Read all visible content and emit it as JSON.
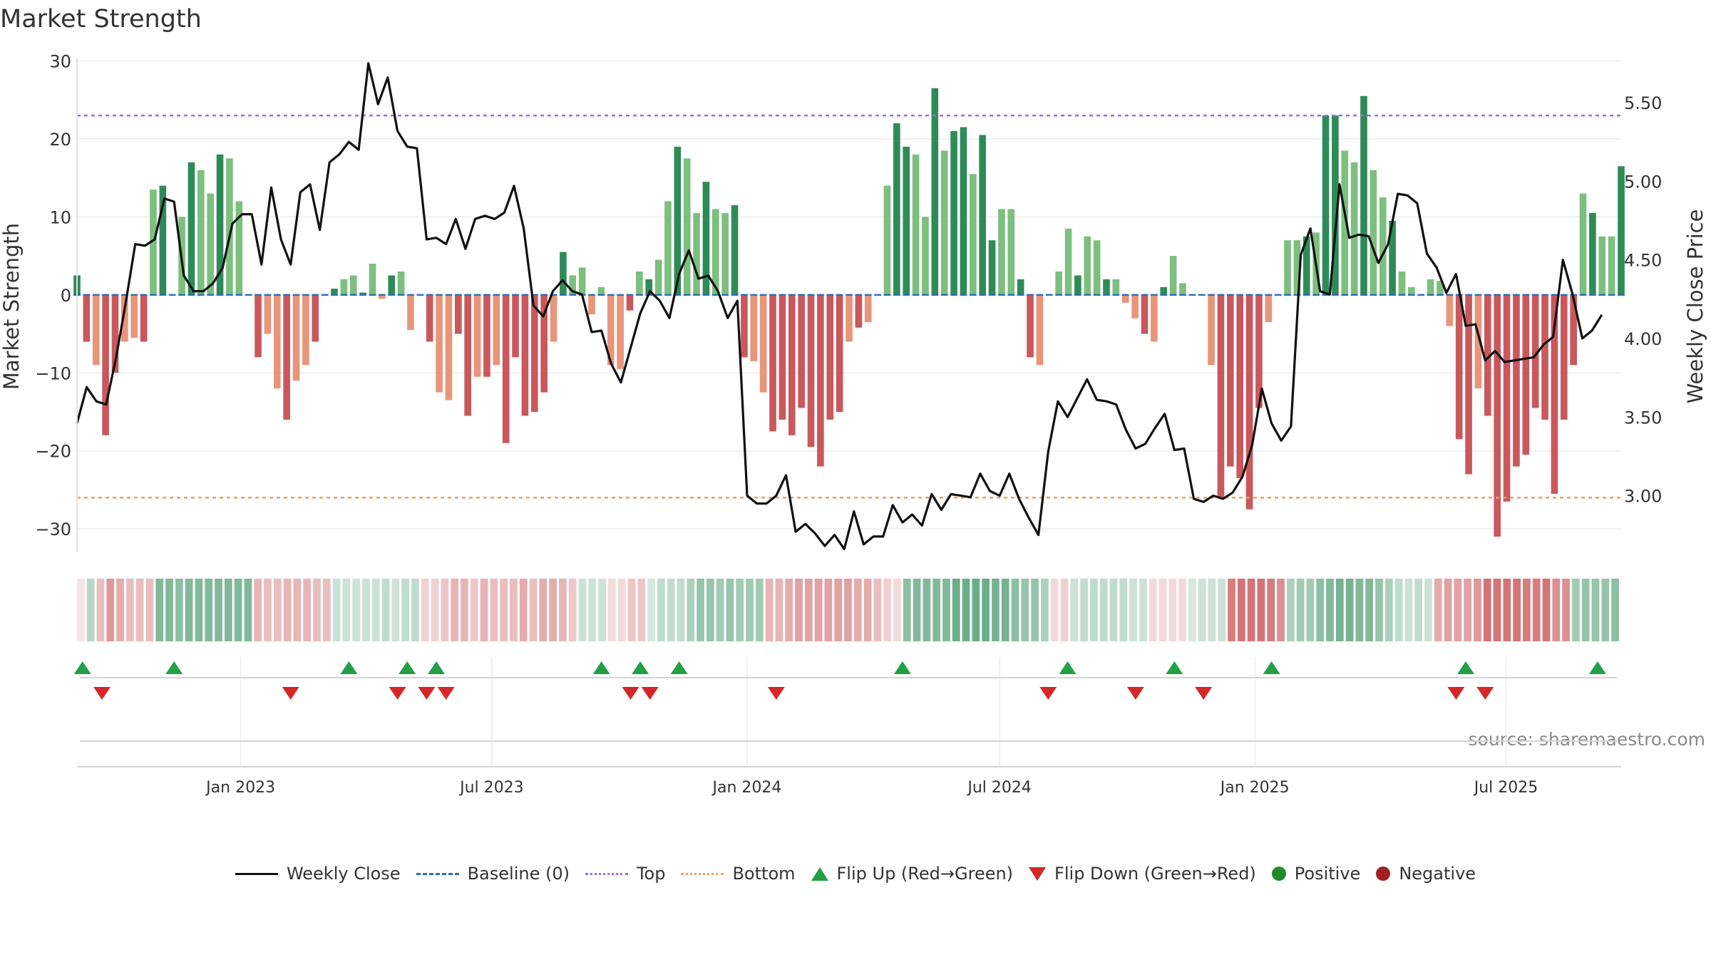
{
  "chart_data": {
    "type": "bar",
    "title": "Market Strength",
    "ylabel_left": "Market Strength",
    "ylabel_right": "Weekly Close Price",
    "source": "source: sharemaestro.com",
    "left_axis": {
      "range": [
        -33,
        30.5
      ],
      "ticks": [
        30,
        20,
        10,
        0,
        -10,
        -20,
        -30
      ],
      "tick_labels": [
        "30",
        "20",
        "10",
        "0",
        "−10",
        "−20",
        "−30"
      ]
    },
    "right_axis": {
      "range": [
        2.64,
        5.79
      ],
      "ticks": [
        5.5,
        5.0,
        4.5,
        4.0,
        3.5,
        3.0
      ],
      "tick_labels": [
        "5.50",
        "5.00",
        "4.50",
        "4.00",
        "3.50",
        "3.00"
      ]
    },
    "x_axis": {
      "start": "2022-09-05",
      "end": "2025-09-22",
      "tick_dates": [
        "2023-01-01",
        "2023-07-01",
        "2024-01-01",
        "2024-07-01",
        "2025-01-01",
        "2025-07-01"
      ],
      "tick_labels": [
        "Jan 2023",
        "Jul 2023",
        "Jan 2024",
        "Jul 2024",
        "Jan 2025",
        "Jul 2025"
      ]
    },
    "reference_lines": {
      "baseline": 0,
      "top": 23,
      "bottom": -26
    },
    "colors": {
      "pos_strong": "#2e8b57",
      "pos_light": "#7cbf7e",
      "neg_strong": "#c9585c",
      "neg_light": "#e8957a",
      "top_line": "#9a6ed8",
      "bottom_line": "#eaa15c",
      "baseline": "#2c6fb5",
      "close_line": "#111111",
      "flip_up": "#22a045",
      "flip_down": "#d62728",
      "positive_dot": "#1f8a2a",
      "negative_dot": "#a01f25"
    },
    "strength_weekly": [
      2.5,
      -6,
      -9,
      -18,
      -10,
      -6,
      -5.5,
      -6,
      13.5,
      14,
      0,
      10,
      17,
      16,
      13,
      18,
      17.5,
      12,
      0,
      -8,
      -5,
      -12,
      -16,
      -11,
      -9,
      -6,
      0,
      0.8,
      2,
      2.5,
      0.3,
      4,
      -0.5,
      2.5,
      3,
      -4.5,
      0,
      -6,
      -12.5,
      -13.5,
      -5,
      -15.5,
      -10.5,
      -10.5,
      -9,
      -19,
      -8,
      -15.5,
      -15,
      -12.5,
      -6,
      5.5,
      2.5,
      3.5,
      -2.5,
      1,
      -9,
      -9.5,
      -2,
      3,
      2,
      4.5,
      12,
      19,
      17.5,
      10.5,
      14.5,
      11,
      10.5,
      11.5,
      -8,
      -8.5,
      -12.5,
      -17.5,
      -16,
      -18,
      -14.5,
      -19.5,
      -22,
      -16,
      -15,
      -6,
      -4.2,
      -3.5,
      0,
      14,
      22,
      19,
      18,
      10,
      26.5,
      18.5,
      21,
      21.5,
      15.5,
      20.5,
      7,
      11,
      11,
      2,
      -8,
      -9,
      0,
      3,
      8.5,
      2.5,
      7.5,
      7,
      2,
      2,
      -1,
      -3,
      -5,
      -6,
      1,
      5,
      1.5,
      0,
      0,
      -9,
      -26,
      -22,
      -23.5,
      -27.5,
      -14.5,
      -3.5,
      0,
      7,
      7,
      7.5,
      8,
      23,
      23,
      18.5,
      17,
      25.5,
      16,
      12.5,
      9.5,
      3,
      1,
      0,
      2,
      1.8,
      -4,
      -18.5,
      -23,
      -12,
      -15.5,
      -31,
      -26.5,
      -22,
      -20.5,
      -14.5,
      -16,
      -25.5,
      -16,
      -9,
      13,
      10.5,
      7.5,
      7.5,
      16.5
    ],
    "close_dates": [
      "2022-09-05",
      "2022-09-12",
      "2022-09-19",
      "2022-09-26",
      "2022-10-03",
      "2022-10-10",
      "2022-10-17",
      "2022-10-24",
      "2022-10-31",
      "2022-11-07",
      "2022-11-14",
      "2022-11-21",
      "2022-11-28",
      "2022-12-05",
      "2022-12-12",
      "2022-12-19",
      "2022-12-26",
      "2023-01-02",
      "2023-01-09",
      "2023-01-16",
      "2023-01-23",
      "2023-01-30",
      "2023-02-06",
      "2023-02-13",
      "2023-02-20",
      "2023-02-27",
      "2023-03-06",
      "2023-03-13",
      "2023-03-20",
      "2023-03-27",
      "2023-04-03",
      "2023-04-10",
      "2023-04-17",
      "2023-04-24",
      "2023-05-01",
      "2023-05-08",
      "2023-05-15",
      "2023-05-22",
      "2023-05-29",
      "2023-06-05",
      "2023-06-12",
      "2023-06-19",
      "2023-06-26",
      "2023-07-03",
      "2023-07-10",
      "2023-07-17",
      "2023-07-24",
      "2023-07-31",
      "2023-08-07",
      "2023-08-14",
      "2023-08-21",
      "2023-08-28",
      "2023-09-04",
      "2023-09-11",
      "2023-09-18",
      "2023-09-25",
      "2023-10-02",
      "2023-10-09",
      "2023-10-16",
      "2023-10-23",
      "2023-10-30",
      "2023-11-06",
      "2023-11-13",
      "2023-11-20",
      "2023-11-27",
      "2023-12-04",
      "2023-12-11",
      "2023-12-18",
      "2023-12-25",
      "2024-01-01",
      "2024-01-08",
      "2024-01-15",
      "2024-01-22",
      "2024-01-29",
      "2024-02-05",
      "2024-02-12",
      "2024-02-19",
      "2024-02-26",
      "2024-03-04",
      "2024-03-11",
      "2024-03-18",
      "2024-03-25",
      "2024-04-01",
      "2024-04-08",
      "2024-04-15",
      "2024-04-22",
      "2024-04-29",
      "2024-05-06",
      "2024-05-13",
      "2024-05-20",
      "2024-05-27",
      "2024-06-03",
      "2024-06-10",
      "2024-06-17",
      "2024-06-24",
      "2024-07-01",
      "2024-07-08",
      "2024-07-15",
      "2024-07-22",
      "2024-07-29",
      "2024-08-05",
      "2024-08-12",
      "2024-08-19",
      "2024-08-26",
      "2024-09-02",
      "2024-09-09",
      "2024-09-16",
      "2024-09-23",
      "2024-09-30",
      "2024-10-07",
      "2024-10-14",
      "2024-10-21",
      "2024-10-28",
      "2024-11-04",
      "2024-11-11",
      "2024-11-18",
      "2024-11-25",
      "2024-12-02",
      "2024-12-09",
      "2024-12-16",
      "2024-12-23",
      "2024-12-30",
      "2025-01-06",
      "2025-01-13",
      "2025-01-20",
      "2025-01-27",
      "2025-02-03",
      "2025-02-10",
      "2025-02-17",
      "2025-02-24",
      "2025-03-03",
      "2025-03-10",
      "2025-03-17",
      "2025-03-24",
      "2025-03-31",
      "2025-04-07",
      "2025-04-14",
      "2025-04-21",
      "2025-04-28",
      "2025-05-05",
      "2025-05-12",
      "2025-05-19",
      "2025-05-26",
      "2025-06-02",
      "2025-06-09",
      "2025-06-16",
      "2025-06-23",
      "2025-06-30",
      "2025-07-07",
      "2025-07-14",
      "2025-07-21",
      "2025-07-28",
      "2025-08-04",
      "2025-08-11",
      "2025-08-18",
      "2025-08-25",
      "2025-09-01",
      "2025-09-08",
      "2025-09-15",
      "2025-09-22"
    ],
    "close_values": [
      3.46,
      3.69,
      3.6,
      3.58,
      3.87,
      4.22,
      4.6,
      4.59,
      4.63,
      4.89,
      4.87,
      4.4,
      4.3,
      4.3,
      4.35,
      4.45,
      4.73,
      4.79,
      4.79,
      4.47,
      4.96,
      4.63,
      4.47,
      4.93,
      4.98,
      4.69,
      5.12,
      5.17,
      5.25,
      5.2,
      5.75,
      5.49,
      5.66,
      5.32,
      5.22,
      5.21,
      4.63,
      4.64,
      4.6,
      4.76,
      4.57,
      4.76,
      4.78,
      4.76,
      4.8,
      4.97,
      4.7,
      4.21,
      4.14,
      4.3,
      4.37,
      4.3,
      4.28,
      4.04,
      4.05,
      3.84,
      3.72,
      3.94,
      4.16,
      4.3,
      4.24,
      4.13,
      4.41,
      4.56,
      4.38,
      4.4,
      4.3,
      4.13,
      4.24,
      3.0,
      2.95,
      2.95,
      3.0,
      3.13,
      2.77,
      2.82,
      2.76,
      2.68,
      2.75,
      2.66,
      2.9,
      2.69,
      2.74,
      2.74,
      2.94,
      2.83,
      2.88,
      2.81,
      3.01,
      2.91,
      3.01,
      3.0,
      2.99,
      3.14,
      3.03,
      3.0,
      3.14,
      2.98,
      2.86,
      2.75,
      3.28,
      3.6,
      3.5,
      3.62,
      3.74,
      3.61,
      3.6,
      3.58,
      3.42,
      3.3,
      3.33,
      3.43,
      3.52,
      3.29,
      3.3,
      2.98,
      2.96,
      3.0,
      2.98,
      3.02,
      3.12,
      3.32,
      3.68,
      3.46,
      3.35,
      3.44,
      4.53,
      4.7,
      4.3,
      4.28,
      4.98,
      4.64,
      4.66,
      4.65,
      4.48,
      4.6,
      4.92,
      4.91,
      4.86,
      4.54,
      4.45,
      4.29,
      4.41,
      4.08,
      4.09,
      3.86,
      3.92,
      3.85,
      3.86,
      3.87,
      3.88,
      3.96,
      4.01,
      4.5,
      4.28,
      4.0,
      4.05,
      4.15
    ],
    "heat_strip": [
      [
        -1,
        0.15
      ],
      [
        1,
        0.35
      ],
      [
        -1,
        0.35
      ],
      [
        -1,
        0.55
      ],
      [
        -1,
        0.45
      ],
      [
        -1,
        0.35
      ],
      [
        -1,
        0.35
      ],
      [
        -1,
        0.35
      ],
      [
        1,
        0.6
      ],
      [
        1,
        0.6
      ],
      [
        1,
        0.55
      ],
      [
        1,
        0.6
      ],
      [
        1,
        0.6
      ],
      [
        1,
        0.6
      ],
      [
        1,
        0.6
      ],
      [
        1,
        0.6
      ],
      [
        1,
        0.6
      ],
      [
        1,
        0.6
      ],
      [
        -1,
        0.4
      ],
      [
        -1,
        0.35
      ],
      [
        -1,
        0.35
      ],
      [
        -1,
        0.4
      ],
      [
        -1,
        0.4
      ],
      [
        -1,
        0.4
      ],
      [
        -1,
        0.35
      ],
      [
        -1,
        0.35
      ],
      [
        1,
        0.25
      ],
      [
        1,
        0.25
      ],
      [
        1,
        0.25
      ],
      [
        1,
        0.25
      ],
      [
        1,
        0.25
      ],
      [
        1,
        0.3
      ],
      [
        1,
        0.25
      ],
      [
        1,
        0.3
      ],
      [
        1,
        0.3
      ],
      [
        -1,
        0.25
      ],
      [
        -1,
        0.25
      ],
      [
        -1,
        0.3
      ],
      [
        -1,
        0.4
      ],
      [
        -1,
        0.4
      ],
      [
        -1,
        0.3
      ],
      [
        -1,
        0.4
      ],
      [
        -1,
        0.35
      ],
      [
        -1,
        0.35
      ],
      [
        -1,
        0.35
      ],
      [
        -1,
        0.45
      ],
      [
        -1,
        0.35
      ],
      [
        -1,
        0.45
      ],
      [
        -1,
        0.45
      ],
      [
        -1,
        0.4
      ],
      [
        -1,
        0.3
      ],
      [
        1,
        0.25
      ],
      [
        1,
        0.25
      ],
      [
        1,
        0.25
      ],
      [
        -1,
        0.2
      ],
      [
        -1,
        0.2
      ],
      [
        -1,
        0.3
      ],
      [
        -1,
        0.3
      ],
      [
        1,
        0.2
      ],
      [
        1,
        0.3
      ],
      [
        1,
        0.3
      ],
      [
        1,
        0.3
      ],
      [
        1,
        0.4
      ],
      [
        1,
        0.5
      ],
      [
        1,
        0.5
      ],
      [
        1,
        0.45
      ],
      [
        1,
        0.5
      ],
      [
        1,
        0.45
      ],
      [
        1,
        0.45
      ],
      [
        1,
        0.45
      ],
      [
        -1,
        0.4
      ],
      [
        -1,
        0.4
      ],
      [
        -1,
        0.45
      ],
      [
        -1,
        0.5
      ],
      [
        -1,
        0.5
      ],
      [
        -1,
        0.5
      ],
      [
        -1,
        0.5
      ],
      [
        -1,
        0.5
      ],
      [
        -1,
        0.5
      ],
      [
        -1,
        0.45
      ],
      [
        -1,
        0.45
      ],
      [
        -1,
        0.35
      ],
      [
        -1,
        0.25
      ],
      [
        -1,
        0.2
      ],
      [
        1,
        0.55
      ],
      [
        1,
        0.6
      ],
      [
        1,
        0.6
      ],
      [
        1,
        0.6
      ],
      [
        1,
        0.6
      ],
      [
        1,
        0.7
      ],
      [
        1,
        0.7
      ],
      [
        1,
        0.7
      ],
      [
        1,
        0.7
      ],
      [
        1,
        0.65
      ],
      [
        1,
        0.65
      ],
      [
        1,
        0.55
      ],
      [
        1,
        0.5
      ],
      [
        1,
        0.5
      ],
      [
        1,
        0.4
      ],
      [
        -1,
        0.2
      ],
      [
        -1,
        0.25
      ],
      [
        1,
        0.25
      ],
      [
        1,
        0.3
      ],
      [
        1,
        0.3
      ],
      [
        1,
        0.3
      ],
      [
        1,
        0.3
      ],
      [
        1,
        0.3
      ],
      [
        1,
        0.25
      ],
      [
        1,
        0.25
      ],
      [
        -1,
        0.2
      ],
      [
        -1,
        0.2
      ],
      [
        -1,
        0.2
      ],
      [
        -1,
        0.2
      ],
      [
        1,
        0.2
      ],
      [
        1,
        0.25
      ],
      [
        1,
        0.25
      ],
      [
        1,
        0.25
      ],
      [
        -1,
        0.7
      ],
      [
        -1,
        0.75
      ],
      [
        -1,
        0.75
      ],
      [
        -1,
        0.75
      ],
      [
        -1,
        0.7
      ],
      [
        -1,
        0.6
      ],
      [
        1,
        0.4
      ],
      [
        1,
        0.45
      ],
      [
        1,
        0.45
      ],
      [
        1,
        0.55
      ],
      [
        1,
        0.6
      ],
      [
        1,
        0.65
      ],
      [
        1,
        0.65
      ],
      [
        1,
        0.6
      ],
      [
        1,
        0.6
      ],
      [
        1,
        0.5
      ],
      [
        1,
        0.4
      ],
      [
        1,
        0.3
      ],
      [
        1,
        0.25
      ],
      [
        1,
        0.3
      ],
      [
        1,
        0.25
      ],
      [
        -1,
        0.45
      ],
      [
        -1,
        0.5
      ],
      [
        -1,
        0.5
      ],
      [
        -1,
        0.5
      ],
      [
        -1,
        0.55
      ],
      [
        -1,
        0.75
      ],
      [
        -1,
        0.75
      ],
      [
        -1,
        0.75
      ],
      [
        -1,
        0.75
      ],
      [
        -1,
        0.7
      ],
      [
        -1,
        0.7
      ],
      [
        -1,
        0.75
      ],
      [
        -1,
        0.6
      ],
      [
        -1,
        0.6
      ],
      [
        1,
        0.45
      ],
      [
        1,
        0.5
      ],
      [
        1,
        0.5
      ],
      [
        1,
        0.5
      ],
      [
        1,
        0.55
      ]
    ],
    "flip_up_dates": [
      "2022-09-09",
      "2022-11-14",
      "2023-03-20",
      "2023-05-01",
      "2023-05-22",
      "2023-09-18",
      "2023-10-16",
      "2023-11-13",
      "2024-04-22",
      "2024-08-19",
      "2024-11-04",
      "2025-01-13",
      "2025-06-02",
      "2025-09-05"
    ],
    "flip_down_dates": [
      "2022-09-23",
      "2023-02-06",
      "2023-04-24",
      "2023-05-15",
      "2023-05-29",
      "2023-10-09",
      "2023-10-23",
      "2024-01-22",
      "2024-08-05",
      "2024-10-07",
      "2024-11-25",
      "2025-05-26",
      "2025-06-16"
    ]
  },
  "legend": {
    "close": "Weekly Close",
    "baseline": "Baseline (0)",
    "top": "Top",
    "bottom": "Bottom",
    "flip_up": "Flip Up (Red→Green)",
    "flip_down": "Flip Down (Green→Red)",
    "positive": "Positive",
    "negative": "Negative"
  }
}
